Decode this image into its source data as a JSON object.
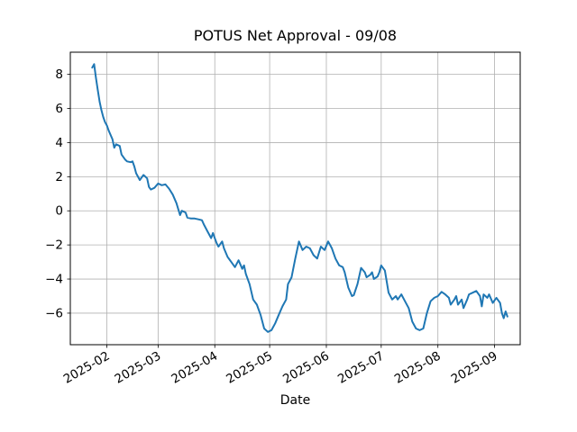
{
  "chart_data": {
    "type": "line",
    "title": "POTUS Net Approval - 09/08",
    "xlabel": "Date",
    "ylabel": "",
    "grid": true,
    "legend_position": "none",
    "x_tick_rotation_deg": 30,
    "xlim": [
      "2025-01-12",
      "2025-09-15"
    ],
    "ylim": [
      -7.85,
      9.3
    ],
    "x_ticks": [
      {
        "date": "2025-02-01",
        "label": "2025-02"
      },
      {
        "date": "2025-03-01",
        "label": "2025-03"
      },
      {
        "date": "2025-04-01",
        "label": "2025-04"
      },
      {
        "date": "2025-05-01",
        "label": "2025-05"
      },
      {
        "date": "2025-06-01",
        "label": "2025-06"
      },
      {
        "date": "2025-07-01",
        "label": "2025-07"
      },
      {
        "date": "2025-08-01",
        "label": "2025-08"
      },
      {
        "date": "2025-09-01",
        "label": "2025-09"
      }
    ],
    "y_ticks": [
      {
        "value": 8,
        "label": "8"
      },
      {
        "value": 6,
        "label": "6"
      },
      {
        "value": 4,
        "label": "4"
      },
      {
        "value": 2,
        "label": "2"
      },
      {
        "value": 0,
        "label": "0"
      },
      {
        "value": -2,
        "label": "−2"
      },
      {
        "value": -4,
        "label": "−4"
      },
      {
        "value": -6,
        "label": "−6"
      }
    ],
    "series": [
      {
        "name": "POTUS net approval",
        "color": "#1f77b4",
        "points": [
          [
            "2025-01-24",
            8.4
          ],
          [
            "2025-01-25",
            8.6
          ],
          [
            "2025-01-26",
            7.8
          ],
          [
            "2025-01-27",
            7.1
          ],
          [
            "2025-01-28",
            6.4
          ],
          [
            "2025-01-29",
            5.9
          ],
          [
            "2025-01-30",
            5.5
          ],
          [
            "2025-01-31",
            5.2
          ],
          [
            "2025-02-01",
            5.0
          ],
          [
            "2025-02-02",
            4.7
          ],
          [
            "2025-02-04",
            4.2
          ],
          [
            "2025-02-05",
            3.7
          ],
          [
            "2025-02-06",
            3.9
          ],
          [
            "2025-02-08",
            3.8
          ],
          [
            "2025-02-09",
            3.3
          ],
          [
            "2025-02-11",
            3.0
          ],
          [
            "2025-02-12",
            2.9
          ],
          [
            "2025-02-14",
            2.85
          ],
          [
            "2025-02-15",
            2.9
          ],
          [
            "2025-02-16",
            2.6
          ],
          [
            "2025-02-17",
            2.2
          ],
          [
            "2025-02-19",
            1.8
          ],
          [
            "2025-02-21",
            2.1
          ],
          [
            "2025-02-22",
            2.0
          ],
          [
            "2025-02-23",
            1.9
          ],
          [
            "2025-02-24",
            1.4
          ],
          [
            "2025-02-25",
            1.25
          ],
          [
            "2025-02-27",
            1.35
          ],
          [
            "2025-03-01",
            1.6
          ],
          [
            "2025-03-03",
            1.5
          ],
          [
            "2025-03-05",
            1.55
          ],
          [
            "2025-03-07",
            1.3
          ],
          [
            "2025-03-09",
            0.95
          ],
          [
            "2025-03-11",
            0.45
          ],
          [
            "2025-03-13",
            -0.25
          ],
          [
            "2025-03-14",
            0.0
          ],
          [
            "2025-03-16",
            -0.1
          ],
          [
            "2025-03-17",
            -0.4
          ],
          [
            "2025-03-19",
            -0.45
          ],
          [
            "2025-03-21",
            -0.45
          ],
          [
            "2025-03-23",
            -0.5
          ],
          [
            "2025-03-25",
            -0.55
          ],
          [
            "2025-03-26",
            -0.8
          ],
          [
            "2025-03-28",
            -1.2
          ],
          [
            "2025-03-30",
            -1.6
          ],
          [
            "2025-03-31",
            -1.3
          ],
          [
            "2025-04-01",
            -1.6
          ],
          [
            "2025-04-02",
            -1.9
          ],
          [
            "2025-04-03",
            -2.1
          ],
          [
            "2025-04-05",
            -1.8
          ],
          [
            "2025-04-06",
            -2.2
          ],
          [
            "2025-04-08",
            -2.7
          ],
          [
            "2025-04-10",
            -3.0
          ],
          [
            "2025-04-12",
            -3.3
          ],
          [
            "2025-04-14",
            -2.9
          ],
          [
            "2025-04-16",
            -3.4
          ],
          [
            "2025-04-17",
            -3.2
          ],
          [
            "2025-04-18",
            -3.7
          ],
          [
            "2025-04-20",
            -4.3
          ],
          [
            "2025-04-22",
            -5.2
          ],
          [
            "2025-04-24",
            -5.5
          ],
          [
            "2025-04-26",
            -6.1
          ],
          [
            "2025-04-28",
            -6.9
          ],
          [
            "2025-04-30",
            -7.1
          ],
          [
            "2025-05-02",
            -7.0
          ],
          [
            "2025-05-04",
            -6.6
          ],
          [
            "2025-05-06",
            -6.1
          ],
          [
            "2025-05-08",
            -5.6
          ],
          [
            "2025-05-10",
            -5.2
          ],
          [
            "2025-05-11",
            -4.3
          ],
          [
            "2025-05-13",
            -3.9
          ],
          [
            "2025-05-15",
            -2.8
          ],
          [
            "2025-05-17",
            -1.8
          ],
          [
            "2025-05-19",
            -2.3
          ],
          [
            "2025-05-21",
            -2.1
          ],
          [
            "2025-05-23",
            -2.2
          ],
          [
            "2025-05-25",
            -2.6
          ],
          [
            "2025-05-27",
            -2.8
          ],
          [
            "2025-05-29",
            -2.1
          ],
          [
            "2025-05-31",
            -2.3
          ],
          [
            "2025-06-02",
            -1.8
          ],
          [
            "2025-06-04",
            -2.2
          ],
          [
            "2025-06-06",
            -2.8
          ],
          [
            "2025-06-08",
            -3.2
          ],
          [
            "2025-06-10",
            -3.3
          ],
          [
            "2025-06-11",
            -3.6
          ],
          [
            "2025-06-13",
            -4.5
          ],
          [
            "2025-06-15",
            -5.0
          ],
          [
            "2025-06-16",
            -4.95
          ],
          [
            "2025-06-18",
            -4.3
          ],
          [
            "2025-06-20",
            -3.35
          ],
          [
            "2025-06-22",
            -3.6
          ],
          [
            "2025-06-23",
            -3.9
          ],
          [
            "2025-06-25",
            -3.75
          ],
          [
            "2025-06-26",
            -3.6
          ],
          [
            "2025-06-27",
            -4.0
          ],
          [
            "2025-06-29",
            -3.85
          ],
          [
            "2025-06-30",
            -3.6
          ],
          [
            "2025-07-01",
            -3.2
          ],
          [
            "2025-07-03",
            -3.5
          ],
          [
            "2025-07-05",
            -4.8
          ],
          [
            "2025-07-07",
            -5.2
          ],
          [
            "2025-07-09",
            -5.0
          ],
          [
            "2025-07-10",
            -5.2
          ],
          [
            "2025-07-12",
            -4.9
          ],
          [
            "2025-07-14",
            -5.3
          ],
          [
            "2025-07-16",
            -5.7
          ],
          [
            "2025-07-18",
            -6.5
          ],
          [
            "2025-07-20",
            -6.9
          ],
          [
            "2025-07-22",
            -7.0
          ],
          [
            "2025-07-24",
            -6.9
          ],
          [
            "2025-07-26",
            -6.0
          ],
          [
            "2025-07-28",
            -5.3
          ],
          [
            "2025-07-30",
            -5.1
          ],
          [
            "2025-08-01",
            -5.0
          ],
          [
            "2025-08-03",
            -4.75
          ],
          [
            "2025-08-05",
            -4.9
          ],
          [
            "2025-08-07",
            -5.1
          ],
          [
            "2025-08-08",
            -5.5
          ],
          [
            "2025-08-10",
            -5.2
          ],
          [
            "2025-08-11",
            -5.0
          ],
          [
            "2025-08-12",
            -5.5
          ],
          [
            "2025-08-14",
            -5.2
          ],
          [
            "2025-08-15",
            -5.7
          ],
          [
            "2025-08-17",
            -5.2
          ],
          [
            "2025-08-18",
            -4.9
          ],
          [
            "2025-08-20",
            -4.8
          ],
          [
            "2025-08-22",
            -4.7
          ],
          [
            "2025-08-24",
            -5.0
          ],
          [
            "2025-08-25",
            -5.6
          ],
          [
            "2025-08-26",
            -4.9
          ],
          [
            "2025-08-28",
            -5.1
          ],
          [
            "2025-08-29",
            -4.9
          ],
          [
            "2025-08-31",
            -5.4
          ],
          [
            "2025-09-01",
            -5.25
          ],
          [
            "2025-09-02",
            -5.1
          ],
          [
            "2025-09-04",
            -5.4
          ],
          [
            "2025-09-05",
            -6.0
          ],
          [
            "2025-09-06",
            -6.3
          ],
          [
            "2025-09-07",
            -5.9
          ],
          [
            "2025-09-08",
            -6.2
          ]
        ]
      }
    ]
  },
  "colors": {
    "line": "#1f77b4",
    "grid": "#b0b0b0",
    "spine": "#000000",
    "background": "#ffffff",
    "text": "#000000"
  }
}
